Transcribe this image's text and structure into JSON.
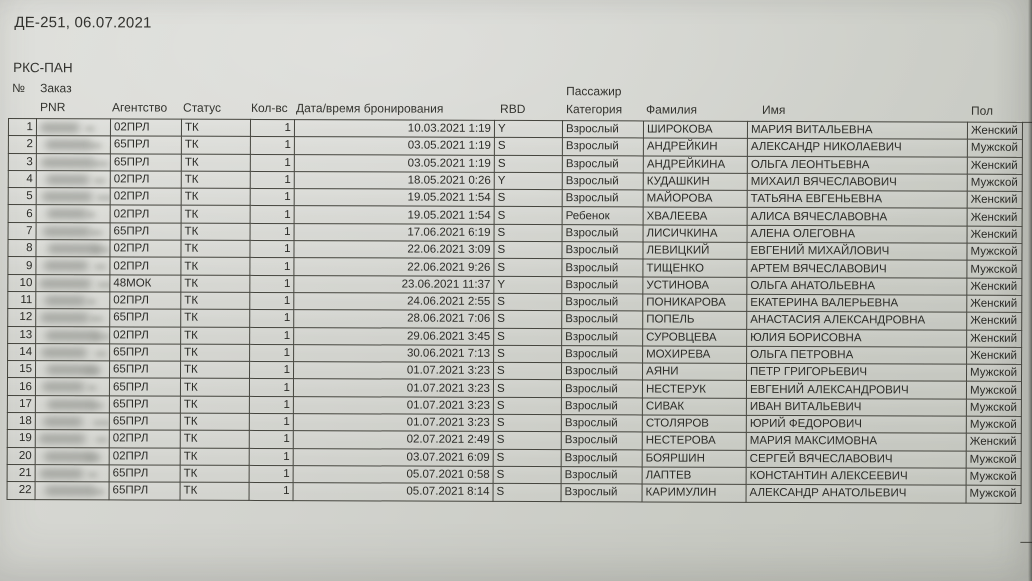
{
  "document": {
    "title": "ДЕ-251, 06.07.2021",
    "report_code": "РКС-ПАН",
    "pnr_column_redacted": true
  },
  "table": {
    "group_headers": {
      "row_number": "№",
      "order": "Заказ",
      "order_sub": "PNR",
      "passenger": "Пассажир"
    },
    "column_headers": {
      "agency": "Агентство",
      "status": "Статус",
      "quantity": "Кол-вс",
      "booking_datetime": "Дата/время бронирования",
      "rbd": "RBD",
      "category": "Категория",
      "surname": "Фамилия",
      "name": "Имя",
      "gender": "Пол"
    },
    "rows": [
      {
        "num": "1",
        "agency": "02ПРЛ",
        "status": "ТК",
        "qty": "1",
        "booked": "10.03.2021 1:19",
        "rbd": "Y",
        "category": "Взрослый",
        "surname": "ШИРОКОВА",
        "name": "МАРИЯ ВИТАЛЬЕВНА",
        "gender": "Женский"
      },
      {
        "num": "2",
        "agency": "65ПРЛ",
        "status": "ТК",
        "qty": "1",
        "booked": "03.05.2021 1:19",
        "rbd": "S",
        "category": "Взрослый",
        "surname": "АНДРЕЙКИН",
        "name": "АЛЕКСАНДР НИКОЛАЕВИЧ",
        "gender": "Мужской"
      },
      {
        "num": "3",
        "agency": "65ПРЛ",
        "status": "ТК",
        "qty": "1",
        "booked": "03.05.2021 1:19",
        "rbd": "S",
        "category": "Взрослый",
        "surname": "АНДРЕЙКИНА",
        "name": "ОЛЬГА ЛЕОНТЬЕВНА",
        "gender": "Женский"
      },
      {
        "num": "4",
        "agency": "02ПРЛ",
        "status": "ТК",
        "qty": "1",
        "booked": "18.05.2021 0:26",
        "rbd": "Y",
        "category": "Взрослый",
        "surname": "КУДАШКИН",
        "name": "МИХАИЛ ВЯЧЕСЛАВОВИЧ",
        "gender": "Мужской"
      },
      {
        "num": "5",
        "agency": "02ПРЛ",
        "status": "ТК",
        "qty": "1",
        "booked": "19.05.2021 1:54",
        "rbd": "S",
        "category": "Взрослый",
        "surname": "МАЙОРОВА",
        "name": "ТАТЬЯНА ЕВГЕНЬЕВНА",
        "gender": "Женский"
      },
      {
        "num": "6",
        "agency": "02ПРЛ",
        "status": "ТК",
        "qty": "1",
        "booked": "19.05.2021 1:54",
        "rbd": "S",
        "category": "Ребенок",
        "surname": "ХВАЛЕЕВА",
        "name": "АЛИСА ВЯЧЕСЛАВОВНА",
        "gender": "Женский"
      },
      {
        "num": "7",
        "agency": "65ПРЛ",
        "status": "ТК",
        "qty": "1",
        "booked": "17.06.2021 6:19",
        "rbd": "S",
        "category": "Взрослый",
        "surname": "ЛИСИЧКИНА",
        "name": "АЛЕНА ОЛЕГОВНА",
        "gender": "Женский"
      },
      {
        "num": "8",
        "agency": "02ПРЛ",
        "status": "ТК",
        "qty": "1",
        "booked": "22.06.2021 3:09",
        "rbd": "S",
        "category": "Взрослый",
        "surname": "ЛЕВИЦКИЙ",
        "name": "ЕВГЕНИЙ МИХАЙЛОВИЧ",
        "gender": "Мужской"
      },
      {
        "num": "9",
        "agency": "02ПРЛ",
        "status": "ТК",
        "qty": "1",
        "booked": "22.06.2021 9:26",
        "rbd": "S",
        "category": "Взрослый",
        "surname": "ТИЩЕНКО",
        "name": "АРТЕМ ВЯЧЕСЛАВОВИЧ",
        "gender": "Мужской"
      },
      {
        "num": "10",
        "agency": "48МОК",
        "status": "ТК",
        "qty": "1",
        "booked": "23.06.2021 11:37",
        "rbd": "Y",
        "category": "Взрослый",
        "surname": "УСТИНОВА",
        "name": "ОЛЬГА АНАТОЛЬЕВНА",
        "gender": "Женский"
      },
      {
        "num": "11",
        "agency": "02ПРЛ",
        "status": "ТК",
        "qty": "1",
        "booked": "24.06.2021 2:55",
        "rbd": "S",
        "category": "Взрослый",
        "surname": "ПОНИКАРОВА",
        "name": "ЕКАТЕРИНА ВАЛЕРЬЕВНА",
        "gender": "Женский"
      },
      {
        "num": "12",
        "agency": "65ПРЛ",
        "status": "ТК",
        "qty": "1",
        "booked": "28.06.2021 7:06",
        "rbd": "S",
        "category": "Взрослый",
        "surname": "ПОПЕЛЬ",
        "name": "АНАСТАСИЯ АЛЕКСАНДРОВНА",
        "gender": "Женский"
      },
      {
        "num": "13",
        "agency": "02ПРЛ",
        "status": "ТК",
        "qty": "1",
        "booked": "29.06.2021 3:45",
        "rbd": "S",
        "category": "Взрослый",
        "surname": "СУРОВЦЕВА",
        "name": "ЮЛИЯ БОРИСОВНА",
        "gender": "Женский"
      },
      {
        "num": "14",
        "agency": "65ПРЛ",
        "status": "ТК",
        "qty": "1",
        "booked": "30.06.2021 7:13",
        "rbd": "S",
        "category": "Взрослый",
        "surname": "МОХИРЕВА",
        "name": "ОЛЬГА ПЕТРОВНА",
        "gender": "Женский"
      },
      {
        "num": "15",
        "agency": "65ПРЛ",
        "status": "ТК",
        "qty": "1",
        "booked": "01.07.2021 3:23",
        "rbd": "S",
        "category": "Взрослый",
        "surname": "АЯНИ",
        "name": "ПЕТР ГРИГОРЬЕВИЧ",
        "gender": "Мужской"
      },
      {
        "num": "16",
        "agency": "65ПРЛ",
        "status": "ТК",
        "qty": "1",
        "booked": "01.07.2021 3:23",
        "rbd": "S",
        "category": "Взрослый",
        "surname": "НЕСТЕРУК",
        "name": "ЕВГЕНИЙ АЛЕКСАНДРОВИЧ",
        "gender": "Мужской"
      },
      {
        "num": "17",
        "agency": "65ПРЛ",
        "status": "ТК",
        "qty": "1",
        "booked": "01.07.2021 3:23",
        "rbd": "S",
        "category": "Взрослый",
        "surname": "СИВАК",
        "name": "ИВАН ВИТАЛЬЕВИЧ",
        "gender": "Мужской"
      },
      {
        "num": "18",
        "agency": "65ПРЛ",
        "status": "ТК",
        "qty": "1",
        "booked": "01.07.2021 3:23",
        "rbd": "S",
        "category": "Взрослый",
        "surname": "СТОЛЯРОВ",
        "name": "ЮРИЙ ФЕДОРОВИЧ",
        "gender": "Мужской"
      },
      {
        "num": "19",
        "agency": "02ПРЛ",
        "status": "ТК",
        "qty": "1",
        "booked": "02.07.2021 2:49",
        "rbd": "S",
        "category": "Взрослый",
        "surname": "НЕСТЕРОВА",
        "name": "МАРИЯ МАКСИМОВНА",
        "gender": "Женский"
      },
      {
        "num": "20",
        "agency": "02ПРЛ",
        "status": "ТК",
        "qty": "1",
        "booked": "03.07.2021 6:09",
        "rbd": "S",
        "category": "Взрослый",
        "surname": "БОЯРШИН",
        "name": "СЕРГЕЙ ВЯЧЕСЛАВОВИЧ",
        "gender": "Мужской"
      },
      {
        "num": "21",
        "agency": "65ПРЛ",
        "status": "ТК",
        "qty": "1",
        "booked": "05.07.2021 0:58",
        "rbd": "S",
        "category": "Взрослый",
        "surname": "ЛАПТЕВ",
        "name": "КОНСТАНТИН АЛЕКСЕЕВИЧ",
        "gender": "Мужской"
      },
      {
        "num": "22",
        "agency": "65ПРЛ",
        "status": "ТК",
        "qty": "1",
        "booked": "05.07.2021 8:14",
        "rbd": "S",
        "category": "Взрослый",
        "surname": "КАРИМУЛИН",
        "name": "АЛЕКСАНДР АНАТОЛЬЕВИЧ",
        "gender": "Мужской"
      }
    ]
  }
}
